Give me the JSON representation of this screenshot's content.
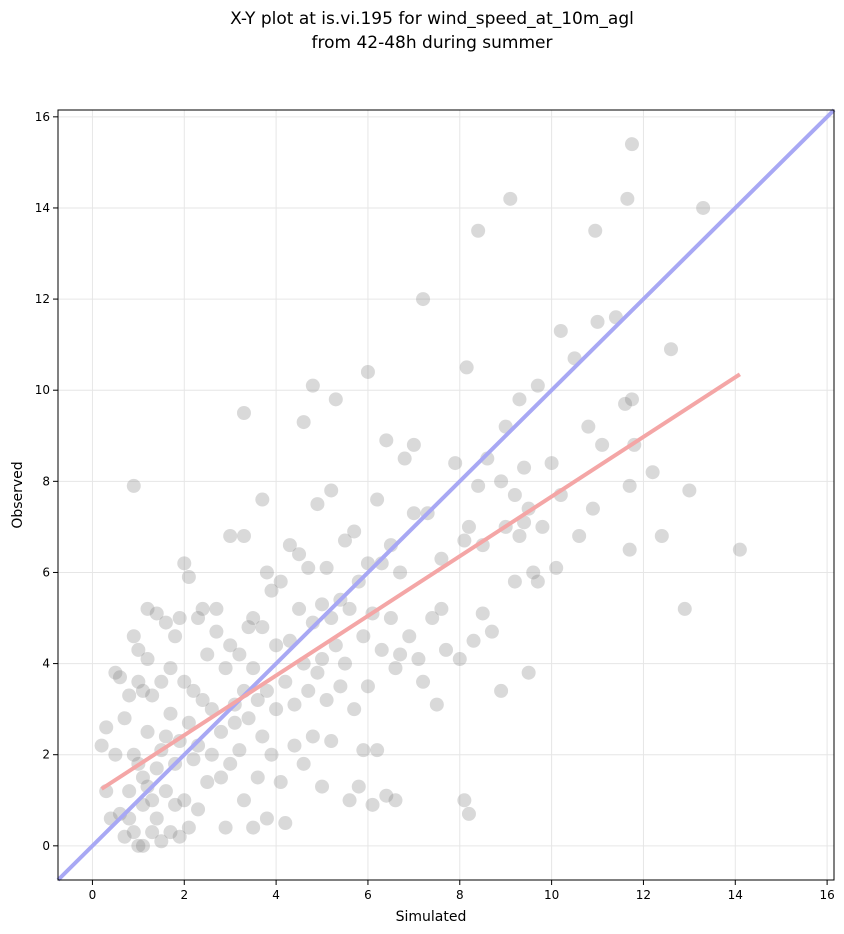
{
  "chart_data": {
    "type": "scatter",
    "title": "X-Y plot at is.vi.195 for wind_speed_at_10m_agl",
    "subtitle": "from 42-48h during summer",
    "xlabel": "Simulated",
    "ylabel": "Observed",
    "xlim": [
      -0.75,
      16.15
    ],
    "ylim": [
      -0.75,
      16.15
    ],
    "xticks": [
      0,
      2,
      4,
      6,
      8,
      10,
      12,
      14,
      16
    ],
    "yticks": [
      0,
      2,
      4,
      6,
      8,
      10,
      12,
      14,
      16
    ],
    "grid": true,
    "point_color": "#808080",
    "lines": [
      {
        "role": "one-to-one",
        "color": "#a8a8f4",
        "x": [
          -0.75,
          16.15
        ],
        "y": [
          -0.75,
          16.15
        ]
      },
      {
        "role": "regression",
        "color": "#f4a6a6",
        "x": [
          0.2,
          14.1
        ],
        "y": [
          1.25,
          10.35
        ]
      }
    ],
    "points": [
      [
        0.2,
        2.2
      ],
      [
        0.3,
        1.2
      ],
      [
        0.3,
        2.6
      ],
      [
        0.4,
        0.6
      ],
      [
        0.5,
        3.8
      ],
      [
        0.5,
        2.0
      ],
      [
        0.6,
        0.7
      ],
      [
        0.6,
        3.7
      ],
      [
        0.7,
        0.2
      ],
      [
        0.7,
        2.8
      ],
      [
        0.8,
        0.6
      ],
      [
        0.8,
        3.3
      ],
      [
        0.8,
        1.2
      ],
      [
        0.9,
        0.3
      ],
      [
        0.9,
        2.0
      ],
      [
        0.9,
        7.9
      ],
      [
        0.9,
        4.6
      ],
      [
        1.0,
        4.3
      ],
      [
        1.0,
        1.8
      ],
      [
        1.0,
        0.0
      ],
      [
        1.0,
        3.6
      ],
      [
        1.1,
        3.4
      ],
      [
        1.1,
        1.5
      ],
      [
        1.1,
        0.9
      ],
      [
        1.1,
        0.0
      ],
      [
        1.2,
        5.2
      ],
      [
        1.2,
        2.5
      ],
      [
        1.2,
        1.3
      ],
      [
        1.2,
        4.1
      ],
      [
        1.3,
        0.3
      ],
      [
        1.3,
        3.3
      ],
      [
        1.3,
        1.0
      ],
      [
        1.4,
        5.1
      ],
      [
        1.4,
        1.7
      ],
      [
        1.4,
        0.6
      ],
      [
        1.5,
        2.1
      ],
      [
        1.5,
        3.6
      ],
      [
        1.5,
        0.1
      ],
      [
        1.6,
        4.9
      ],
      [
        1.6,
        2.4
      ],
      [
        1.6,
        1.2
      ],
      [
        1.7,
        0.3
      ],
      [
        1.7,
        3.9
      ],
      [
        1.7,
        2.9
      ],
      [
        1.8,
        0.9
      ],
      [
        1.8,
        4.6
      ],
      [
        1.8,
        1.8
      ],
      [
        1.9,
        5.0
      ],
      [
        1.9,
        0.2
      ],
      [
        1.9,
        2.3
      ],
      [
        2.0,
        6.2
      ],
      [
        2.0,
        3.6
      ],
      [
        2.0,
        1.0
      ],
      [
        2.1,
        5.9
      ],
      [
        2.1,
        2.7
      ],
      [
        2.1,
        0.4
      ],
      [
        2.2,
        1.9
      ],
      [
        2.2,
        3.4
      ],
      [
        2.3,
        5.0
      ],
      [
        2.3,
        2.2
      ],
      [
        2.3,
        0.8
      ],
      [
        2.4,
        5.2
      ],
      [
        2.4,
        3.2
      ],
      [
        2.5,
        1.4
      ],
      [
        2.5,
        4.2
      ],
      [
        2.6,
        2.0
      ],
      [
        2.6,
        3.0
      ],
      [
        2.7,
        5.2
      ],
      [
        2.7,
        4.7
      ],
      [
        2.8,
        1.5
      ],
      [
        2.8,
        2.5
      ],
      [
        2.9,
        3.9
      ],
      [
        2.9,
        0.4
      ],
      [
        3.0,
        6.8
      ],
      [
        3.0,
        4.4
      ],
      [
        3.0,
        1.8
      ],
      [
        3.1,
        3.1
      ],
      [
        3.1,
        2.7
      ],
      [
        3.2,
        4.2
      ],
      [
        3.2,
        2.1
      ],
      [
        3.3,
        9.5
      ],
      [
        3.3,
        6.8
      ],
      [
        3.3,
        3.4
      ],
      [
        3.3,
        1.0
      ],
      [
        3.4,
        4.8
      ],
      [
        3.4,
        2.8
      ],
      [
        3.5,
        5.0
      ],
      [
        3.5,
        0.4
      ],
      [
        3.5,
        3.9
      ],
      [
        3.6,
        3.2
      ],
      [
        3.6,
        1.5
      ],
      [
        3.7,
        7.6
      ],
      [
        3.7,
        4.8
      ],
      [
        3.7,
        2.4
      ],
      [
        3.8,
        6.0
      ],
      [
        3.8,
        3.4
      ],
      [
        3.8,
        0.6
      ],
      [
        3.9,
        5.6
      ],
      [
        3.9,
        2.0
      ],
      [
        4.0,
        4.4
      ],
      [
        4.0,
        3.0
      ],
      [
        4.1,
        5.8
      ],
      [
        4.1,
        1.4
      ],
      [
        4.2,
        3.6
      ],
      [
        4.2,
        0.5
      ],
      [
        4.3,
        6.6
      ],
      [
        4.3,
        4.5
      ],
      [
        4.4,
        2.2
      ],
      [
        4.4,
        3.1
      ],
      [
        4.5,
        6.4
      ],
      [
        4.5,
        5.2
      ],
      [
        4.6,
        9.3
      ],
      [
        4.6,
        4.0
      ],
      [
        4.6,
        1.8
      ],
      [
        4.7,
        6.1
      ],
      [
        4.7,
        3.4
      ],
      [
        4.8,
        10.1
      ],
      [
        4.8,
        4.9
      ],
      [
        4.8,
        2.4
      ],
      [
        4.9,
        7.5
      ],
      [
        4.9,
        3.8
      ],
      [
        5.0,
        5.3
      ],
      [
        5.0,
        4.1
      ],
      [
        5.0,
        1.3
      ],
      [
        5.1,
        6.1
      ],
      [
        5.1,
        3.2
      ],
      [
        5.2,
        7.8
      ],
      [
        5.2,
        5.0
      ],
      [
        5.2,
        2.3
      ],
      [
        5.3,
        9.8
      ],
      [
        5.3,
        4.4
      ],
      [
        5.4,
        5.4
      ],
      [
        5.4,
        3.5
      ],
      [
        5.5,
        6.7
      ],
      [
        5.5,
        4.0
      ],
      [
        5.6,
        1.0
      ],
      [
        5.6,
        5.2
      ],
      [
        5.7,
        6.9
      ],
      [
        5.7,
        3.0
      ],
      [
        5.8,
        5.8
      ],
      [
        5.8,
        1.3
      ],
      [
        5.9,
        4.6
      ],
      [
        5.9,
        2.1
      ],
      [
        6.0,
        10.4
      ],
      [
        6.0,
        6.2
      ],
      [
        6.0,
        3.5
      ],
      [
        6.1,
        5.1
      ],
      [
        6.1,
        0.9
      ],
      [
        6.2,
        7.6
      ],
      [
        6.2,
        2.1
      ],
      [
        6.3,
        6.2
      ],
      [
        6.3,
        4.3
      ],
      [
        6.4,
        8.9
      ],
      [
        6.4,
        1.1
      ],
      [
        6.5,
        6.6
      ],
      [
        6.5,
        5.0
      ],
      [
        6.6,
        3.9
      ],
      [
        6.6,
        1.0
      ],
      [
        6.7,
        6.0
      ],
      [
        6.7,
        4.2
      ],
      [
        6.8,
        8.5
      ],
      [
        6.9,
        4.6
      ],
      [
        7.0,
        8.8
      ],
      [
        7.0,
        7.3
      ],
      [
        7.1,
        4.1
      ],
      [
        7.2,
        12.0
      ],
      [
        7.2,
        3.6
      ],
      [
        7.3,
        7.3
      ],
      [
        7.4,
        5.0
      ],
      [
        7.5,
        3.1
      ],
      [
        7.6,
        6.3
      ],
      [
        7.6,
        5.2
      ],
      [
        7.7,
        4.3
      ],
      [
        7.9,
        8.4
      ],
      [
        8.0,
        4.1
      ],
      [
        8.1,
        6.7
      ],
      [
        8.1,
        1.0
      ],
      [
        8.15,
        10.5
      ],
      [
        8.2,
        7.0
      ],
      [
        8.2,
        0.7
      ],
      [
        8.3,
        4.5
      ],
      [
        8.4,
        13.5
      ],
      [
        8.4,
        7.9
      ],
      [
        8.5,
        6.6
      ],
      [
        8.5,
        5.1
      ],
      [
        8.6,
        8.5
      ],
      [
        8.7,
        4.7
      ],
      [
        8.9,
        8.0
      ],
      [
        8.9,
        3.4
      ],
      [
        9.0,
        9.2
      ],
      [
        9.0,
        7.0
      ],
      [
        9.1,
        14.2
      ],
      [
        9.2,
        7.7
      ],
      [
        9.2,
        5.8
      ],
      [
        9.3,
        9.8
      ],
      [
        9.3,
        6.8
      ],
      [
        9.4,
        8.3
      ],
      [
        9.4,
        7.1
      ],
      [
        9.5,
        7.4
      ],
      [
        9.5,
        3.8
      ],
      [
        9.6,
        6.0
      ],
      [
        9.7,
        10.1
      ],
      [
        9.7,
        5.8
      ],
      [
        9.8,
        7.0
      ],
      [
        10.0,
        8.4
      ],
      [
        10.1,
        6.1
      ],
      [
        10.2,
        11.3
      ],
      [
        10.2,
        7.7
      ],
      [
        10.5,
        10.7
      ],
      [
        10.6,
        6.8
      ],
      [
        10.8,
        9.2
      ],
      [
        10.9,
        7.4
      ],
      [
        10.95,
        13.5
      ],
      [
        11.0,
        11.5
      ],
      [
        11.1,
        8.8
      ],
      [
        11.4,
        11.6
      ],
      [
        11.6,
        9.7
      ],
      [
        11.65,
        14.2
      ],
      [
        11.7,
        7.9
      ],
      [
        11.7,
        6.5
      ],
      [
        11.75,
        15.4
      ],
      [
        11.75,
        9.8
      ],
      [
        11.8,
        8.8
      ],
      [
        12.2,
        8.2
      ],
      [
        12.4,
        6.8
      ],
      [
        12.6,
        10.9
      ],
      [
        12.9,
        5.2
      ],
      [
        13.0,
        7.8
      ],
      [
        13.3,
        14.0
      ],
      [
        14.1,
        6.5
      ]
    ]
  }
}
